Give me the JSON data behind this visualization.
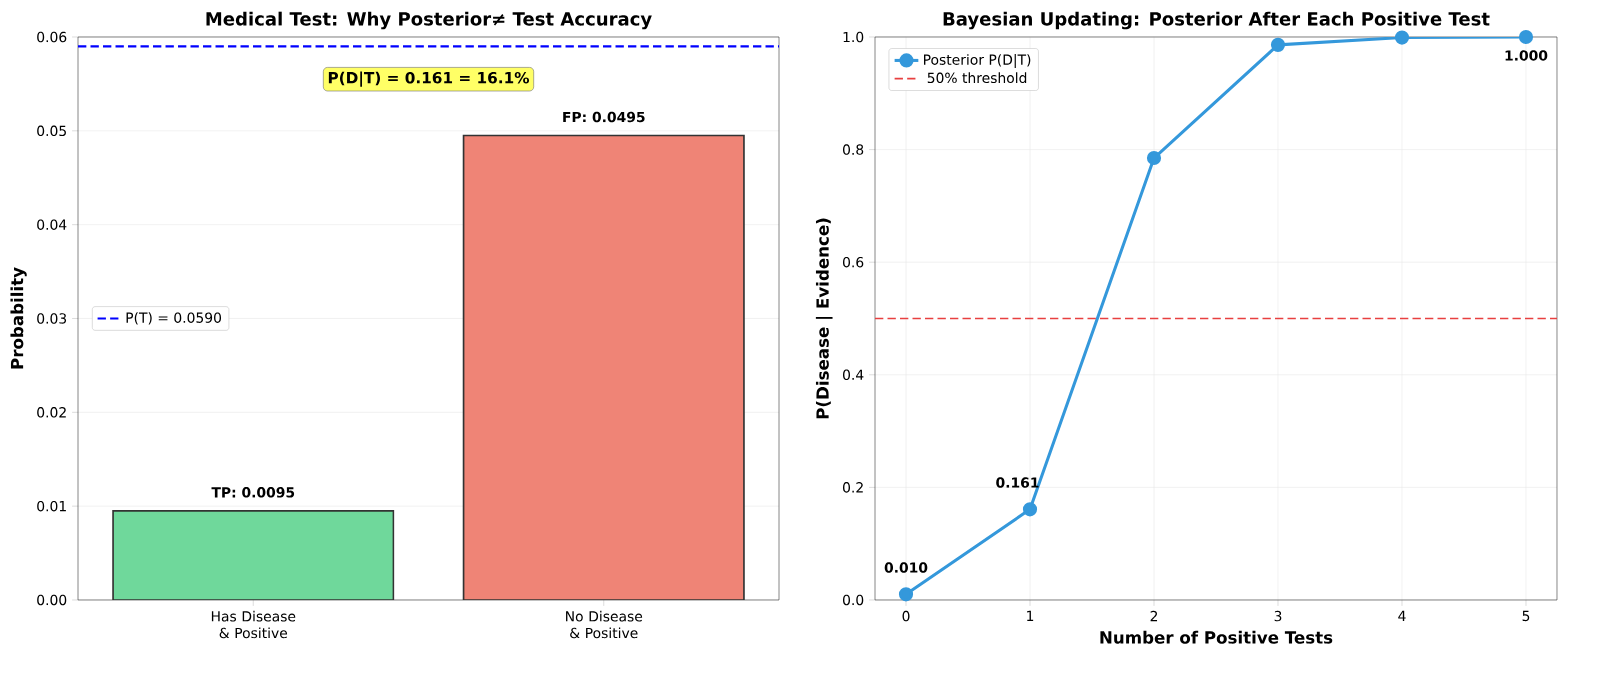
{
  "chart_data": [
    {
      "type": "bar",
      "title": "Medical Test: Why Posterior≠ Test Accuracy",
      "ylabel": "Probability",
      "categories": [
        "Has Disease & Positive",
        "No Disease & Positive"
      ],
      "values": [
        0.0095,
        0.0495
      ],
      "colors": [
        "#6fd89b",
        "#ef8476"
      ],
      "value_labels": [
        "TP: 0.0095",
        "FP: 0.0495"
      ],
      "ylim": [
        0,
        0.06
      ],
      "yticks": [
        {
          "value": 0,
          "label": "0.00"
        },
        {
          "value": 0.01,
          "label": "0.01"
        },
        {
          "value": 0.02,
          "label": "0.02"
        },
        {
          "value": 0.03,
          "label": "0.03"
        },
        {
          "value": 0.04,
          "label": "0.04"
        },
        {
          "value": 0.05,
          "label": "0.05"
        },
        {
          "value": 0.06,
          "label": "0.06"
        }
      ],
      "ref_lines": [
        {
          "axis": "y",
          "value": 0.059,
          "label": "P(T) = 0.0590",
          "color": "#0000ff",
          "line_style": "dashed"
        }
      ],
      "annotations": [
        "P(D|T) = 0.161 = 16.1%"
      ],
      "legend": "left",
      "grid": "y"
    },
    {
      "type": "line",
      "title": "Bayesian Updating: Posterior After Each Positive Test",
      "xlabel": "Number of Positive Tests",
      "ylabel": "P(Disease | Evidence)",
      "x": [
        0,
        1,
        2,
        3,
        4,
        5
      ],
      "series": [
        {
          "name": "Posterior P(D|T)",
          "color": "#3498db",
          "values": [
            0.01,
            0.161,
            0.785,
            0.986,
            0.999,
            1.0
          ],
          "value_labels": [
            "0.010",
            "0.161",
            null,
            null,
            null,
            "1.000"
          ]
        }
      ],
      "xlim": [
        -0.25,
        5.25
      ],
      "ylim": [
        0,
        1
      ],
      "xticks": [
        0,
        1,
        2,
        3,
        4,
        5
      ],
      "yticks": [
        {
          "value": 0,
          "label": "0.0"
        },
        0.2,
        0.4,
        0.6,
        0.8,
        {
          "value": 1,
          "label": "1.0"
        }
      ],
      "ref_lines": [
        {
          "axis": "y",
          "value": 0.5,
          "label": "50% threshold",
          "color": "#e84040",
          "line_style": "dashed"
        }
      ],
      "legend": "top left",
      "grid": true,
      "marker": "circle",
      "line_style": "solid"
    }
  ]
}
